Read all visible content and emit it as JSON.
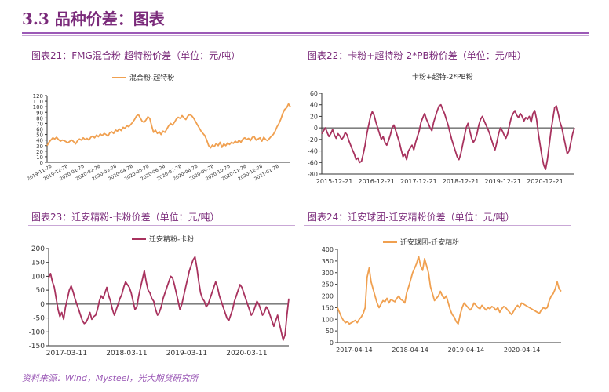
{
  "header": {
    "title": "3.3 品种价差：图表"
  },
  "source": "资料来源：Wind，Mysteel，光大期货研究所",
  "charts": [
    {
      "id": "c21",
      "caption": "图表21：FMG混合粉-超特粉价差（单位：元/吨）",
      "legend": "混合粉-超特粉",
      "color": "#f0a050",
      "ylim": [
        0,
        120
      ],
      "yticks": [
        0,
        10,
        20,
        30,
        40,
        50,
        60,
        70,
        80,
        90,
        100,
        110,
        120
      ],
      "xlabels": [
        "2019-11-28",
        "2019-12-28",
        "2020-01-28",
        "2020-02-28",
        "2020-03-28",
        "2020-04-28",
        "2020-05-28",
        "2020-06-28",
        "2020-07-28",
        "2020-08-28",
        "2020-09-28",
        "2020-10-28",
        "2020-11-28",
        "2020-12-28",
        "2021-01-28"
      ]
    },
    {
      "id": "c22",
      "caption": "图表22：卡粉+超特粉-2*PB粉价差（单位：元/吨）",
      "legend": "卡粉+超特-2*PB粉",
      "color": "#a8325e",
      "ylim": [
        -80,
        60
      ],
      "yticks": [
        -80,
        -60,
        -40,
        -20,
        0,
        20,
        40,
        60
      ],
      "xlabels": [
        "2015-12-21",
        "2016-12-21",
        "2017-12-21",
        "2018-12-21",
        "2019-12-21",
        "2020-12-21"
      ]
    },
    {
      "id": "c23",
      "caption": "图表23：迁安精粉-卡粉价差（单位：元/吨）",
      "legend": "迁安精粉-卡粉",
      "color": "#a8325e",
      "ylim": [
        -150,
        200
      ],
      "yticks": [
        -150,
        -100,
        -50,
        0,
        50,
        100,
        150,
        200
      ],
      "xlabels": [
        "2017-03-11",
        "2018-03-11",
        "2019-03-11",
        "2020-03-11"
      ]
    },
    {
      "id": "c24",
      "caption": "图表24：迁安球团-迁安精粉价差（单位：元/吨）",
      "legend": "迁安球团-迁安精粉",
      "color": "#f0a050",
      "ylim": [
        0,
        400
      ],
      "yticks": [
        0,
        50,
        100,
        150,
        200,
        250,
        300,
        350,
        400
      ],
      "xlabels": [
        "2017-04-14",
        "2018-04-14",
        "2019-04-14",
        "2020-04-14"
      ]
    }
  ],
  "chart_data": [
    {
      "type": "line",
      "title": "图表21：FMG混合粉-超特粉价差（单位：元/吨）",
      "series": [
        {
          "name": "混合粉-超特粉",
          "values": [
            30,
            36,
            40,
            44,
            42,
            45,
            41,
            38,
            40,
            39,
            37,
            35,
            38,
            40,
            37,
            33,
            39,
            42,
            40,
            44,
            41,
            43,
            40,
            45,
            47,
            44,
            49,
            46,
            51,
            48,
            52,
            50,
            47,
            53,
            55,
            52,
            58,
            56,
            60,
            57,
            63,
            61,
            66,
            64,
            68,
            72,
            77,
            83,
            86,
            80,
            74,
            72,
            76,
            82,
            79,
            66,
            54,
            58,
            52,
            55,
            50,
            56,
            54,
            60,
            66,
            70,
            67,
            72,
            78,
            81,
            79,
            84,
            80,
            77,
            83,
            86,
            84,
            80,
            74,
            68,
            62,
            56,
            52,
            48,
            40,
            30,
            26,
            31,
            28,
            34,
            30,
            36,
            27,
            33,
            30,
            35,
            32,
            36,
            34,
            38,
            35,
            40,
            36,
            42,
            44,
            41,
            43,
            39,
            45,
            46,
            40,
            42,
            44,
            38,
            45,
            41,
            39,
            43,
            47,
            50,
            56,
            64,
            70,
            78,
            88,
            95,
            98,
            105,
            100
          ]
        }
      ],
      "ylim": [
        0,
        120
      ]
    },
    {
      "type": "line",
      "title": "图表22：卡粉+超特粉-2*PB粉价差（单位：元/吨）",
      "series": [
        {
          "name": "卡粉+超特-2*PB粉",
          "values": [
            -10,
            -5,
            0,
            -8,
            -15,
            -10,
            -3,
            -12,
            -18,
            -10,
            -14,
            -20,
            -16,
            -8,
            -12,
            -22,
            -30,
            -38,
            -45,
            -55,
            -52,
            -60,
            -58,
            -45,
            -30,
            -10,
            5,
            20,
            28,
            22,
            10,
            0,
            -10,
            -20,
            -15,
            -25,
            -30,
            -22,
            -12,
            0,
            5,
            -5,
            -15,
            -25,
            -38,
            -50,
            -45,
            -55,
            -40,
            -35,
            -30,
            -38,
            -25,
            -15,
            -5,
            10,
            18,
            25,
            15,
            8,
            0,
            -5,
            10,
            20,
            30,
            38,
            40,
            32,
            25,
            15,
            5,
            -8,
            -20,
            -30,
            -40,
            -50,
            -55,
            -45,
            -30,
            -15,
            0,
            8,
            -5,
            -18,
            -25,
            -20,
            -10,
            5,
            15,
            20,
            12,
            5,
            -2,
            -10,
            -20,
            -30,
            -38,
            -25,
            -10,
            0,
            -5,
            -12,
            -18,
            -10,
            5,
            18,
            25,
            30,
            22,
            18,
            25,
            20,
            12,
            18,
            15,
            20,
            10,
            25,
            30,
            15,
            -10,
            -30,
            -50,
            -65,
            -72,
            -55,
            -30,
            -5,
            15,
            35,
            38,
            25,
            10,
            0,
            -15,
            -30,
            -45,
            -40,
            -25,
            -10,
            0
          ]
        }
      ],
      "ylim": [
        -80,
        60
      ]
    },
    {
      "type": "line",
      "title": "图表23：迁安精粉-卡粉价差（单位：元/吨）",
      "series": [
        {
          "name": "迁安精粉-卡粉",
          "values": [
            95,
            110,
            80,
            60,
            20,
            -20,
            -45,
            -30,
            -55,
            -10,
            20,
            50,
            65,
            45,
            20,
            0,
            -20,
            -40,
            -60,
            -70,
            -65,
            -50,
            -30,
            -55,
            -45,
            -40,
            -20,
            10,
            30,
            20,
            40,
            60,
            30,
            10,
            -20,
            -40,
            -20,
            0,
            20,
            35,
            60,
            80,
            70,
            60,
            40,
            10,
            -20,
            -10,
            30,
            60,
            90,
            120,
            80,
            50,
            40,
            20,
            10,
            -20,
            -40,
            -30,
            -10,
            20,
            40,
            60,
            80,
            100,
            95,
            70,
            40,
            10,
            -20,
            0,
            30,
            60,
            90,
            120,
            140,
            160,
            170,
            130,
            80,
            40,
            20,
            10,
            -10,
            0,
            20,
            40,
            60,
            80,
            60,
            30,
            10,
            -10,
            -30,
            -50,
            -60,
            -40,
            -20,
            10,
            30,
            50,
            70,
            60,
            40,
            20,
            0,
            -20,
            -40,
            -30,
            -10,
            10,
            0,
            -20,
            -40,
            -30,
            -10,
            -20,
            -40,
            -60,
            -80,
            -60,
            -40,
            -70,
            -100,
            -130,
            -110,
            -40,
            20
          ]
        }
      ],
      "ylim": [
        -150,
        200
      ]
    },
    {
      "type": "line",
      "title": "图表24：迁安球团-迁安精粉价差（单位：元/吨）",
      "series": [
        {
          "name": "迁安球团-迁安精粉",
          "values": [
            150,
            130,
            110,
            95,
            85,
            90,
            80,
            85,
            90,
            95,
            85,
            100,
            110,
            125,
            150,
            280,
            320,
            260,
            230,
            200,
            170,
            150,
            165,
            180,
            175,
            190,
            170,
            185,
            180,
            175,
            190,
            200,
            185,
            180,
            170,
            215,
            240,
            270,
            300,
            320,
            340,
            370,
            330,
            310,
            360,
            330,
            300,
            240,
            210,
            180,
            190,
            200,
            220,
            200,
            190,
            200,
            170,
            140,
            120,
            110,
            90,
            80,
            120,
            150,
            170,
            160,
            150,
            140,
            150,
            170,
            160,
            150,
            145,
            160,
            150,
            140,
            150,
            145,
            155,
            150,
            140,
            150,
            130,
            145,
            155,
            150,
            140,
            130,
            120,
            135,
            150,
            160,
            150,
            170,
            165,
            160,
            155,
            150,
            145,
            140,
            135,
            130,
            125,
            140,
            150,
            145,
            150,
            180,
            200,
            210,
            230,
            260,
            230,
            220
          ]
        }
      ],
      "ylim": [
        0,
        400
      ]
    }
  ]
}
